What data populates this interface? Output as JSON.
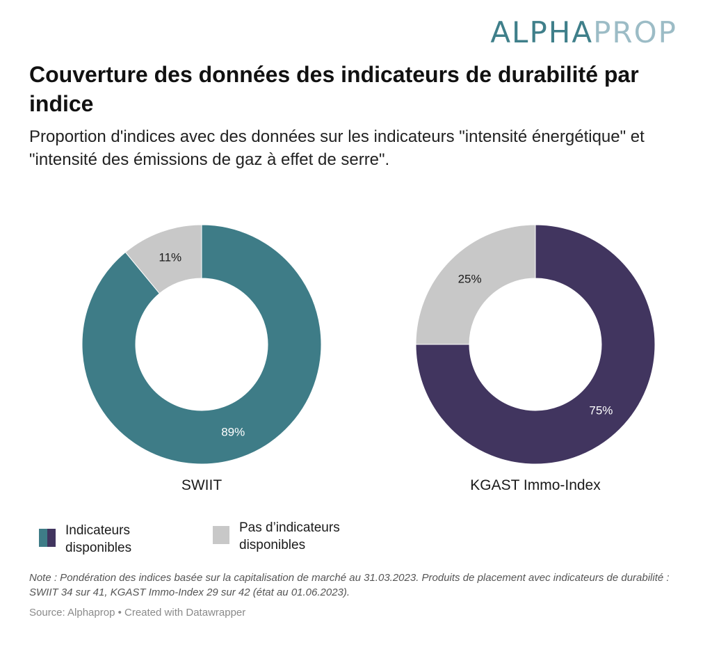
{
  "logo": {
    "part1": "ALPHA",
    "part2": "PROP"
  },
  "title": "Couverture des données des indicateurs de durabilité par indice",
  "subtitle": "Proportion d'indices avec des données sur les indicateurs \"intensité énergétique\" et \"intensité des émissions de gaz à effet de serre\".",
  "legend": {
    "available": "Indicateurs disponibles",
    "not_available": "Pas d’indicateurs disponibles"
  },
  "note": "Note : Pondération des indices basée sur la capitalisation de marché au 31.03.2023. Produits de placement avec indicateurs de durabilité : SWIIT 34 sur 41, KGAST Immo-Index 29 sur 42 (état au 01.06.2023).",
  "source": "Source: Alphaprop • Created with Datawrapper",
  "colors": {
    "swiit": "#3e7c87",
    "kgast": "#41355f",
    "grey": "#c8c8c8"
  },
  "chart_data": [
    {
      "type": "pie",
      "title": "SWIIT",
      "categories": [
        "Indicateurs disponibles",
        "Pas d’indicateurs disponibles"
      ],
      "values": [
        89,
        11
      ],
      "labels": [
        "89%",
        "11%"
      ]
    },
    {
      "type": "pie",
      "title": "KGAST Immo-Index",
      "categories": [
        "Indicateurs disponibles",
        "Pas d’indicateurs disponibles"
      ],
      "values": [
        75,
        25
      ],
      "labels": [
        "75%",
        "25%"
      ]
    }
  ]
}
